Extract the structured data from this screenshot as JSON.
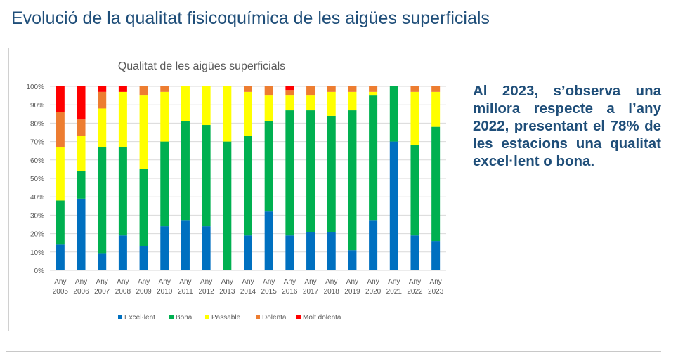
{
  "slide_title": "Evolució de la qualitat fisicoquímica de les aigües superficials",
  "note": "Al 2023, s’observa una millora respecte a l’any 2022, presentant el 78% de les estacions una qualitat excel·lent o bona.",
  "chart_data": {
    "type": "bar",
    "stacked": true,
    "percent": true,
    "title": "Qualitat de les aigües superficials",
    "xlabel": "",
    "ylabel": "",
    "ylim": [
      0,
      100
    ],
    "yticks": [
      "0%",
      "10%",
      "20%",
      "30%",
      "40%",
      "50%",
      "60%",
      "70%",
      "80%",
      "90%",
      "100%"
    ],
    "grid": true,
    "legend_position": "bottom",
    "categories": [
      "Any 2005",
      "Any 2006",
      "Any 2007",
      "Any 2008",
      "Any 2009",
      "Any 2010",
      "Any 2011",
      "Any 2012",
      "Any 2013",
      "Any 2014",
      "Any 2015",
      "Any 2016",
      "Any 2017",
      "Any 2018",
      "Any 2019",
      "Any 2020",
      "Any 2021",
      "Any 2022",
      "Any 2023"
    ],
    "series": [
      {
        "name": "Excel·lent",
        "color": "#0070c0",
        "values": [
          14,
          39,
          9,
          19,
          13,
          24,
          27,
          24,
          0,
          19,
          32,
          19,
          21,
          21,
          11,
          27,
          70,
          19,
          16
        ]
      },
      {
        "name": "Bona",
        "color": "#00b050",
        "values": [
          24,
          15,
          58,
          48,
          42,
          46,
          54,
          55,
          70,
          54,
          49,
          68,
          66,
          63,
          76,
          68,
          30,
          49,
          62
        ]
      },
      {
        "name": "Passable",
        "color": "#ffff00",
        "values": [
          29,
          19,
          21,
          30,
          40,
          27,
          19,
          21,
          30,
          24,
          14,
          8,
          8,
          13,
          10,
          2,
          0,
          29,
          19
        ]
      },
      {
        "name": "Dolenta",
        "color": "#ed7d31",
        "values": [
          19,
          9,
          9,
          0,
          5,
          3,
          0,
          0,
          0,
          3,
          5,
          3,
          5,
          3,
          3,
          3,
          0,
          3,
          3
        ]
      },
      {
        "name": "Molt dolenta",
        "color": "#ff0000",
        "values": [
          14,
          18,
          3,
          3,
          0,
          0,
          0,
          0,
          0,
          0,
          0,
          2,
          0,
          0,
          0,
          0,
          0,
          0,
          0
        ]
      }
    ]
  }
}
